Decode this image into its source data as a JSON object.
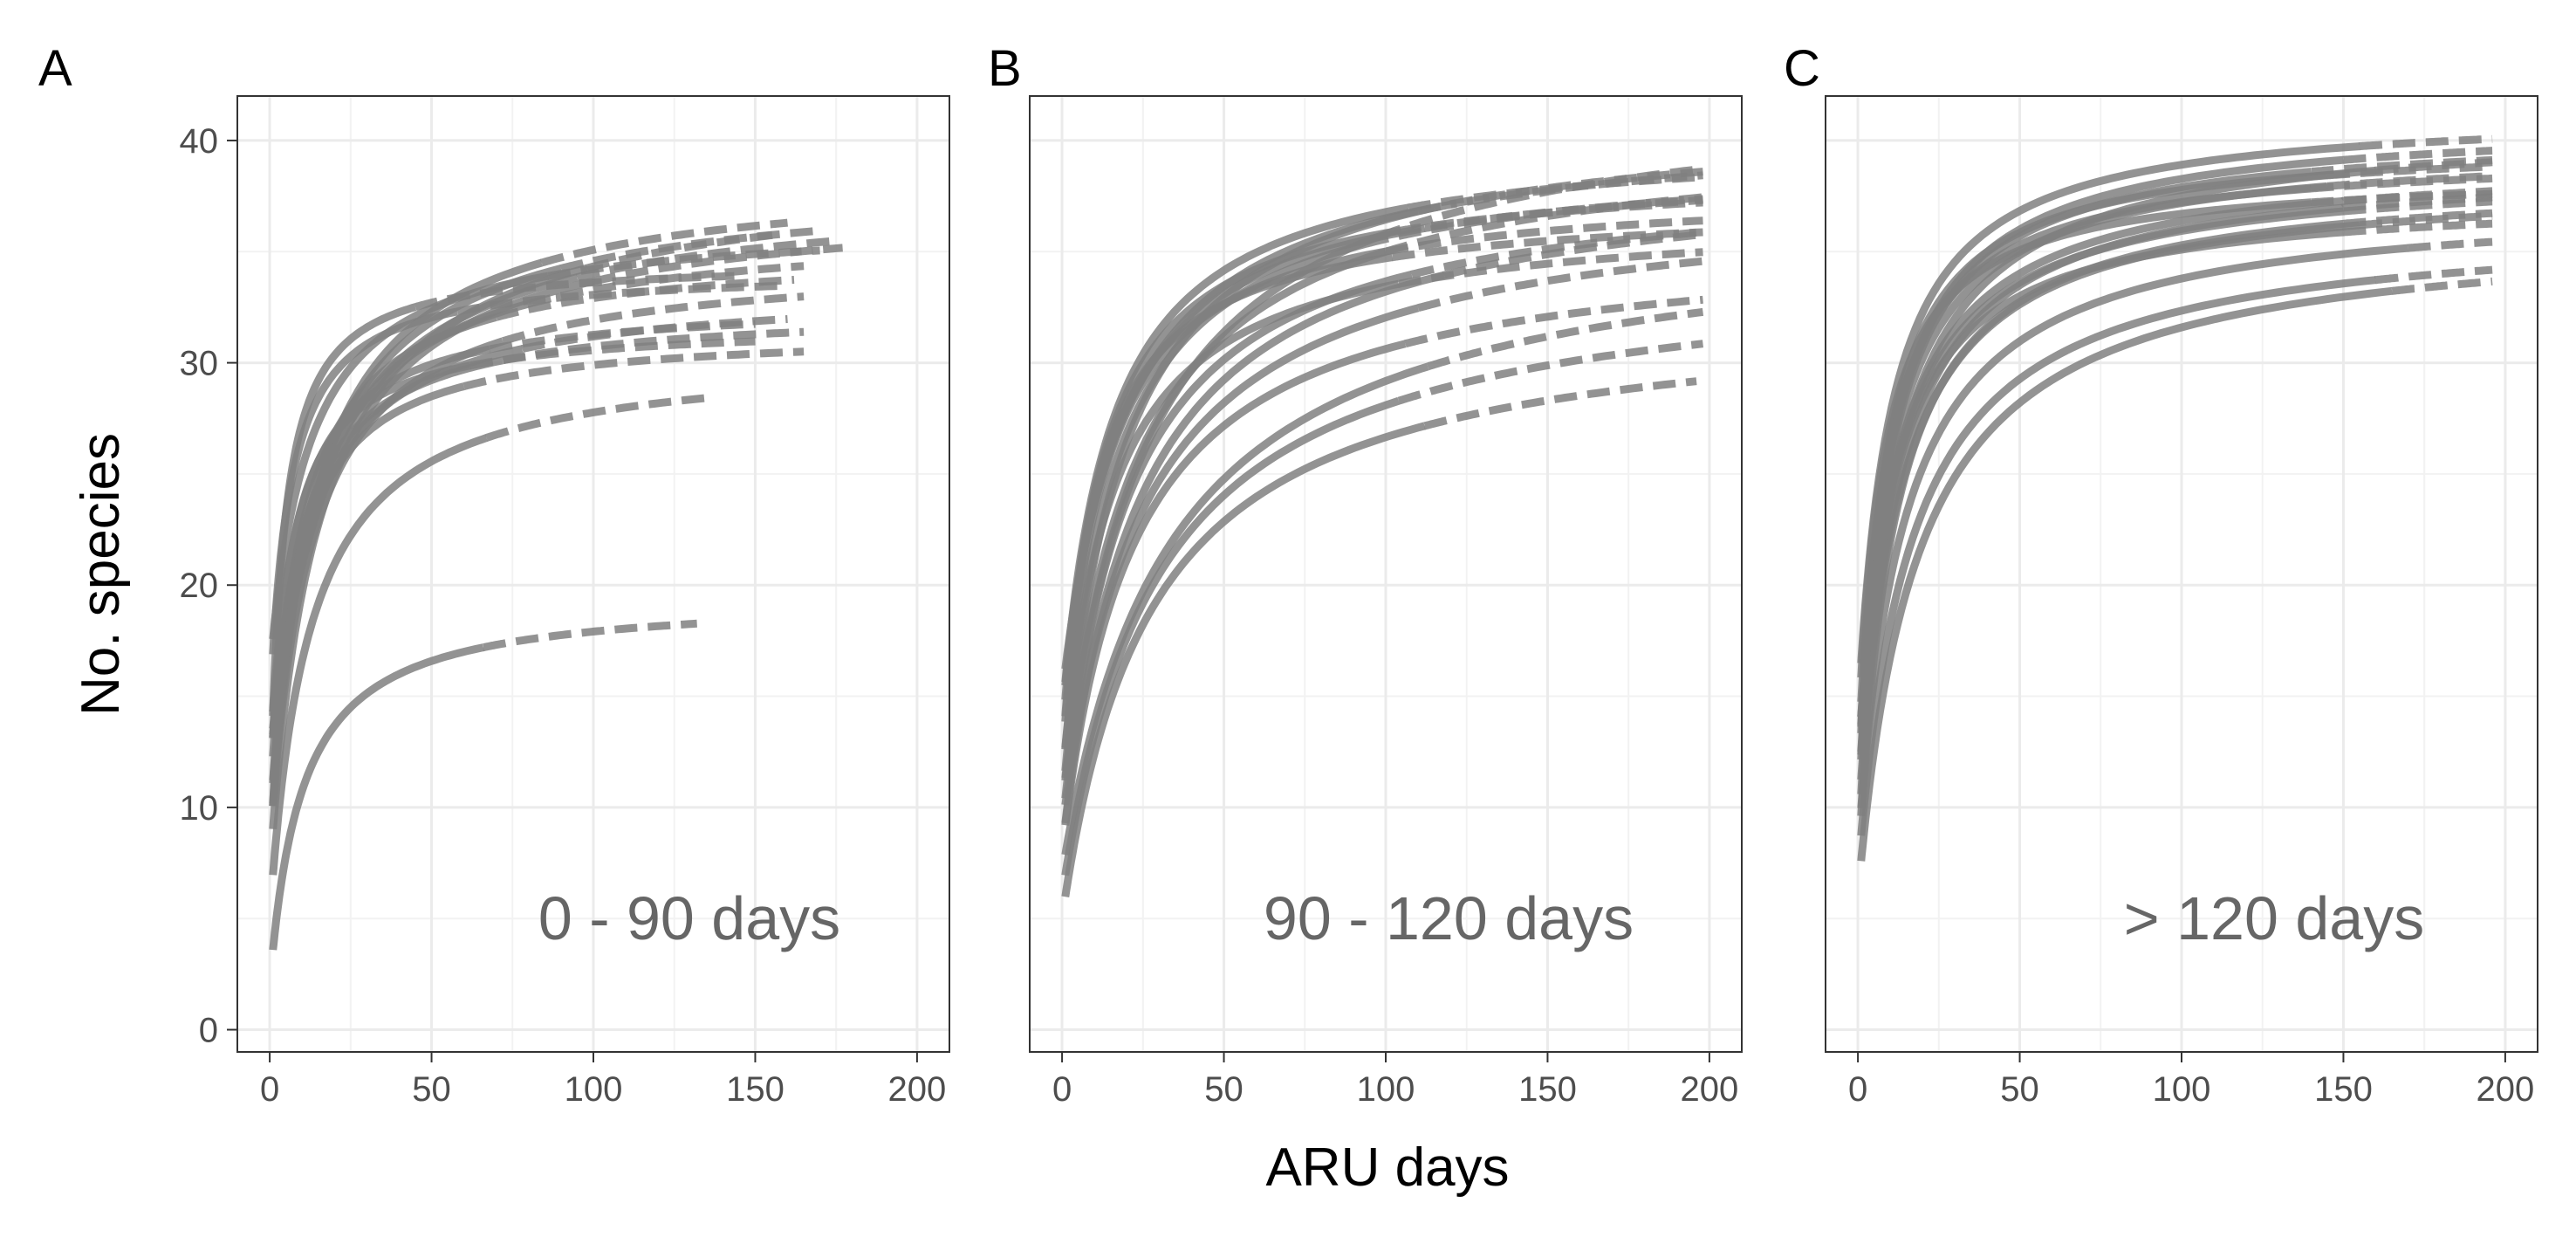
{
  "chart_data": [
    {
      "type": "line",
      "panel_tag": "A",
      "annotation": "0 - 90 days",
      "xlabel": "ARU days",
      "ylabel": "No. species",
      "xlim": [
        -10,
        210
      ],
      "ylim": [
        -1,
        42
      ],
      "xticks": [
        0,
        50,
        100,
        150,
        200
      ],
      "yticks": [
        0,
        10,
        20,
        30,
        40
      ],
      "grid": true,
      "legend": "none",
      "line_color": "#808080",
      "observed_style": "solid",
      "extrapolated_style": "dashed",
      "series": [
        {
          "asymptote": 19.5,
          "start": 2,
          "half": 10,
          "observed_to": 66,
          "extrapolated_to": 132
        },
        {
          "asymptote": 30.5,
          "start": 5,
          "half": 12,
          "observed_to": 67,
          "extrapolated_to": 136
        },
        {
          "asymptote": 38.6,
          "start": 8,
          "half": 13,
          "observed_to": 84,
          "extrapolated_to": 160
        },
        {
          "asymptote": 34.6,
          "start": 9,
          "half": 4,
          "observed_to": 45,
          "extrapolated_to": 145
        },
        {
          "asymptote": 37.4,
          "start": 7,
          "half": 14,
          "observed_to": 100,
          "extrapolated_to": 177
        },
        {
          "asymptote": 34.8,
          "start": 8,
          "half": 12,
          "observed_to": 72,
          "extrapolated_to": 165
        },
        {
          "asymptote": 31.5,
          "start": 7,
          "half": 7,
          "observed_to": 60,
          "extrapolated_to": 165
        },
        {
          "asymptote": 35.2,
          "start": 10,
          "half": 10,
          "observed_to": 70,
          "extrapolated_to": 162
        },
        {
          "asymptote": 36.2,
          "start": 9,
          "half": 12,
          "observed_to": 80,
          "extrapolated_to": 165
        },
        {
          "asymptote": 32.5,
          "start": 11,
          "half": 9,
          "observed_to": 72,
          "extrapolated_to": 165
        },
        {
          "asymptote": 38.2,
          "start": 12,
          "half": 16,
          "observed_to": 90,
          "extrapolated_to": 170
        },
        {
          "asymptote": 32.8,
          "start": 12,
          "half": 8,
          "observed_to": 68,
          "extrapolated_to": 150
        },
        {
          "asymptote": 37.8,
          "start": 13,
          "half": 18,
          "observed_to": 95,
          "extrapolated_to": 175
        },
        {
          "asymptote": 34.2,
          "start": 14,
          "half": 6,
          "observed_to": 58,
          "extrapolated_to": 160
        },
        {
          "asymptote": 36.4,
          "start": 16,
          "half": 12,
          "observed_to": 86,
          "extrapolated_to": 170
        },
        {
          "asymptote": 31.8,
          "start": 10,
          "half": 6,
          "observed_to": 62,
          "extrapolated_to": 150
        },
        {
          "asymptote": 33.4,
          "start": 9,
          "half": 10,
          "observed_to": 78,
          "extrapolated_to": 160
        },
        {
          "asymptote": 38.8,
          "start": 12,
          "half": 20,
          "observed_to": 98,
          "extrapolated_to": 158
        }
      ]
    },
    {
      "type": "line",
      "panel_tag": "B",
      "annotation": "90 - 120 days",
      "xlabel": "ARU days",
      "ylabel": "No. species",
      "xlim": [
        -10,
        210
      ],
      "ylim": [
        -1,
        42
      ],
      "xticks": [
        0,
        50,
        100,
        150,
        200
      ],
      "yticks": [
        0,
        10,
        20,
        30,
        40
      ],
      "grid": true,
      "legend": "none",
      "line_color": "#808080",
      "observed_style": "solid",
      "extrapolated_style": "dashed",
      "series": [
        {
          "asymptote": 32.5,
          "start": 5,
          "half": 27,
          "observed_to": 112,
          "extrapolated_to": 196
        },
        {
          "asymptote": 34.5,
          "start": 6,
          "half": 29,
          "observed_to": 104,
          "extrapolated_to": 198
        },
        {
          "asymptote": 36.5,
          "start": 7,
          "half": 33,
          "observed_to": 113,
          "extrapolated_to": 198
        },
        {
          "asymptote": 35.6,
          "start": 8,
          "half": 22,
          "observed_to": 106,
          "extrapolated_to": 198
        },
        {
          "asymptote": 37.8,
          "start": 9,
          "half": 25,
          "observed_to": 110,
          "extrapolated_to": 198
        },
        {
          "asymptote": 39.0,
          "start": 8,
          "half": 23,
          "observed_to": 118,
          "extrapolated_to": 198
        },
        {
          "asymptote": 40.5,
          "start": 10,
          "half": 22,
          "observed_to": 100,
          "extrapolated_to": 198
        },
        {
          "asymptote": 42.5,
          "start": 10,
          "half": 26,
          "observed_to": 98,
          "extrapolated_to": 198
        },
        {
          "asymptote": 39.5,
          "start": 11,
          "half": 16,
          "observed_to": 94,
          "extrapolated_to": 198
        },
        {
          "asymptote": 38.0,
          "start": 12,
          "half": 13,
          "observed_to": 100,
          "extrapolated_to": 198
        },
        {
          "asymptote": 38.8,
          "start": 13,
          "half": 13,
          "observed_to": 104,
          "extrapolated_to": 198
        },
        {
          "asymptote": 40.2,
          "start": 14,
          "half": 15,
          "observed_to": 107,
          "extrapolated_to": 198
        },
        {
          "asymptote": 37.2,
          "start": 12,
          "half": 11,
          "observed_to": 102,
          "extrapolated_to": 198
        },
        {
          "asymptote": 41.2,
          "start": 10,
          "half": 18,
          "observed_to": 110,
          "extrapolated_to": 198
        },
        {
          "asymptote": 39.2,
          "start": 14,
          "half": 16,
          "observed_to": 112,
          "extrapolated_to": 198
        },
        {
          "asymptote": 36.8,
          "start": 11,
          "half": 15,
          "observed_to": 104,
          "extrapolated_to": 198
        },
        {
          "asymptote": 40.8,
          "start": 15,
          "half": 20,
          "observed_to": 115,
          "extrapolated_to": 198
        },
        {
          "asymptote": 38.6,
          "start": 9,
          "half": 20,
          "observed_to": 108,
          "extrapolated_to": 198
        }
      ]
    },
    {
      "type": "line",
      "panel_tag": "C",
      "annotation": "> 120 days",
      "xlabel": "ARU days",
      "ylabel": "No. species",
      "xlim": [
        -10,
        210
      ],
      "ylim": [
        -1,
        42
      ],
      "xticks": [
        0,
        50,
        100,
        150,
        200
      ],
      "yticks": [
        0,
        10,
        20,
        30,
        40
      ],
      "grid": true,
      "legend": "none",
      "line_color": "#808080",
      "observed_style": "solid",
      "extrapolated_style": "dashed",
      "series": [
        {
          "asymptote": 36.2,
          "start": 6,
          "half": 18,
          "observed_to": 165,
          "extrapolated_to": 196
        },
        {
          "asymptote": 36.4,
          "start": 7,
          "half": 16,
          "observed_to": 160,
          "extrapolated_to": 196
        },
        {
          "asymptote": 37.4,
          "start": 8,
          "half": 14,
          "observed_to": 170,
          "extrapolated_to": 196
        },
        {
          "asymptote": 38.3,
          "start": 9,
          "half": 12,
          "observed_to": 155,
          "extrapolated_to": 196
        },
        {
          "asymptote": 37.6,
          "start": 10,
          "half": 10,
          "observed_to": 150,
          "extrapolated_to": 196
        },
        {
          "asymptote": 39.8,
          "start": 11,
          "half": 10,
          "observed_to": 145,
          "extrapolated_to": 196
        },
        {
          "asymptote": 38.8,
          "start": 12,
          "half": 12,
          "observed_to": 150,
          "extrapolated_to": 196
        },
        {
          "asymptote": 39.5,
          "start": 12,
          "half": 9,
          "observed_to": 140,
          "extrapolated_to": 196
        },
        {
          "asymptote": 38.6,
          "start": 13,
          "half": 8,
          "observed_to": 140,
          "extrapolated_to": 196
        },
        {
          "asymptote": 40.5,
          "start": 9,
          "half": 9,
          "observed_to": 140,
          "extrapolated_to": 196
        },
        {
          "asymptote": 40.0,
          "start": 10,
          "half": 8,
          "observed_to": 145,
          "extrapolated_to": 196
        },
        {
          "asymptote": 41.0,
          "start": 11,
          "half": 10,
          "observed_to": 150,
          "extrapolated_to": 196
        },
        {
          "asymptote": 41.4,
          "start": 14,
          "half": 10,
          "observed_to": 155,
          "extrapolated_to": 196
        },
        {
          "asymptote": 39.1,
          "start": 8,
          "half": 11,
          "observed_to": 150,
          "extrapolated_to": 196
        },
        {
          "asymptote": 40.8,
          "start": 10,
          "half": 12,
          "observed_to": 160,
          "extrapolated_to": 196
        },
        {
          "asymptote": 38.4,
          "start": 7,
          "half": 11,
          "observed_to": 150,
          "extrapolated_to": 196
        },
        {
          "asymptote": 39.3,
          "start": 12,
          "half": 12,
          "observed_to": 150,
          "extrapolated_to": 196
        }
      ]
    }
  ]
}
